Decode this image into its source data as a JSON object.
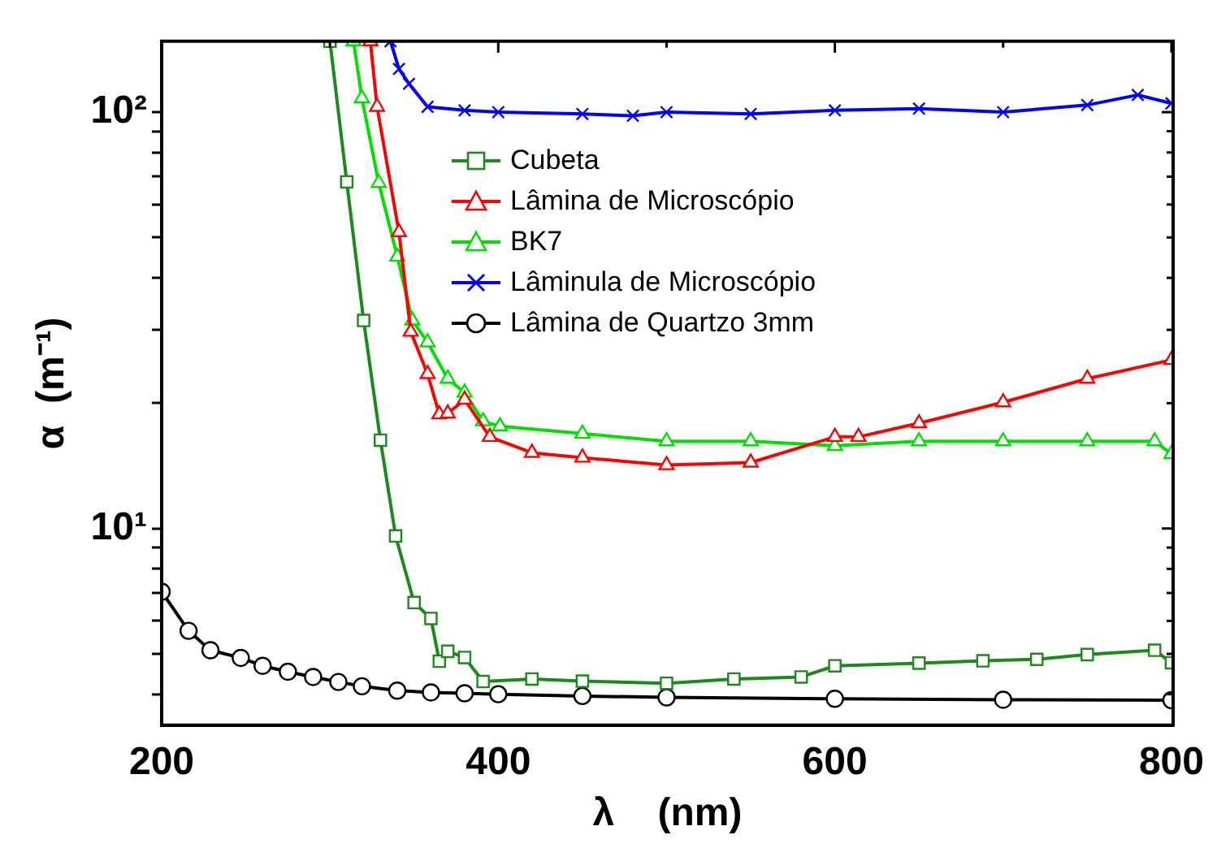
{
  "chart_data": {
    "type": "line",
    "xlabel": "λ    (nm)",
    "ylabel": "α  (m⁻¹)",
    "log": "y",
    "xlim": [
      200,
      801
    ],
    "ylim": [
      3.37,
      148
    ],
    "xticks": [
      200,
      {
        "value": 300,
        "label": null
      },
      400,
      {
        "value": 500,
        "label": null
      },
      600,
      {
        "value": 700,
        "label": null
      },
      800
    ],
    "yticks": [
      {
        "value": 4,
        "label": null
      },
      {
        "value": 5,
        "label": null
      },
      {
        "value": 6,
        "label": null
      },
      {
        "value": 7,
        "label": null
      },
      {
        "value": 8,
        "label": null
      },
      {
        "value": 9,
        "label": null
      },
      {
        "value": 10,
        "label": "10¹"
      },
      {
        "value": 20,
        "label": null
      },
      {
        "value": 30,
        "label": null
      },
      {
        "value": 40,
        "label": null
      },
      {
        "value": 50,
        "label": null
      },
      {
        "value": 60,
        "label": null
      },
      {
        "value": 70,
        "label": null
      },
      {
        "value": 80,
        "label": null
      },
      {
        "value": 90,
        "label": null
      },
      {
        "value": 100,
        "label": "10²"
      }
    ],
    "grid": false,
    "legend": "top",
    "line_style": "solid",
    "series": [
      {
        "name": "Cubeta",
        "color": "#1a8a1a",
        "marker": "square",
        "x": [
          300,
          310,
          320,
          330,
          339,
          350,
          360,
          365,
          370,
          380,
          391,
          420,
          450,
          500,
          540,
          580,
          600,
          650,
          688,
          720,
          750,
          790,
          800
        ],
        "values": [
          148,
          68,
          31.6,
          16.3,
          9.6,
          6.64,
          6.08,
          4.8,
          5.07,
          4.9,
          4.29,
          4.35,
          4.3,
          4.25,
          4.35,
          4.4,
          4.68,
          4.75,
          4.81,
          4.85,
          4.98,
          5.1,
          4.76
        ]
      },
      {
        "name": "Lâmina de Microscópio",
        "color": "#ff0000",
        "marker": "triangle",
        "x": [
          324,
          328,
          341,
          348,
          358,
          365,
          370,
          380,
          395,
          420,
          450,
          500,
          550,
          600,
          614,
          650,
          700,
          750,
          800
        ],
        "values": [
          148,
          103,
          51.5,
          29.7,
          23.5,
          18.8,
          18.9,
          20.4,
          16.6,
          15.2,
          14.8,
          14.2,
          14.4,
          16.6,
          16.6,
          17.9,
          20.1,
          22.9,
          25.4
        ]
      },
      {
        "name": "BK7",
        "color": "#00e000",
        "marker": "triangle",
        "x": [
          314,
          319,
          329,
          340,
          349,
          358,
          370,
          380,
          391,
          401,
          450,
          500,
          550,
          600,
          650,
          700,
          750,
          790,
          800
        ],
        "values": [
          148,
          108,
          67.6,
          45,
          31.6,
          28,
          22.9,
          21.2,
          18.1,
          17.6,
          16.9,
          16.2,
          16.2,
          15.8,
          16.2,
          16.2,
          16.2,
          16.2,
          15.1
        ]
      },
      {
        "name": "Lâminula de Microscópio",
        "color": "#0000ff",
        "marker": "cross",
        "x": [
          336,
          341,
          347,
          358,
          380,
          400,
          450,
          480,
          500,
          550,
          600,
          650,
          700,
          750,
          780,
          800
        ],
        "values": [
          148,
          127,
          117,
          103,
          101,
          100,
          99,
          98,
          100,
          99,
          101,
          102,
          100,
          104,
          110,
          105
        ]
      },
      {
        "name": "Lâmina de Quartzo 3mm",
        "color": "#000000",
        "marker": "circle",
        "x": [
          200,
          216,
          229,
          247,
          260,
          275,
          290,
          305,
          319,
          340,
          360,
          380,
          400,
          450,
          500,
          600,
          700,
          800
        ],
        "values": [
          7.05,
          5.68,
          5.1,
          4.89,
          4.68,
          4.53,
          4.4,
          4.28,
          4.18,
          4.08,
          4.04,
          4.02,
          4.0,
          3.96,
          3.93,
          3.9,
          3.88,
          3.87
        ]
      }
    ]
  }
}
